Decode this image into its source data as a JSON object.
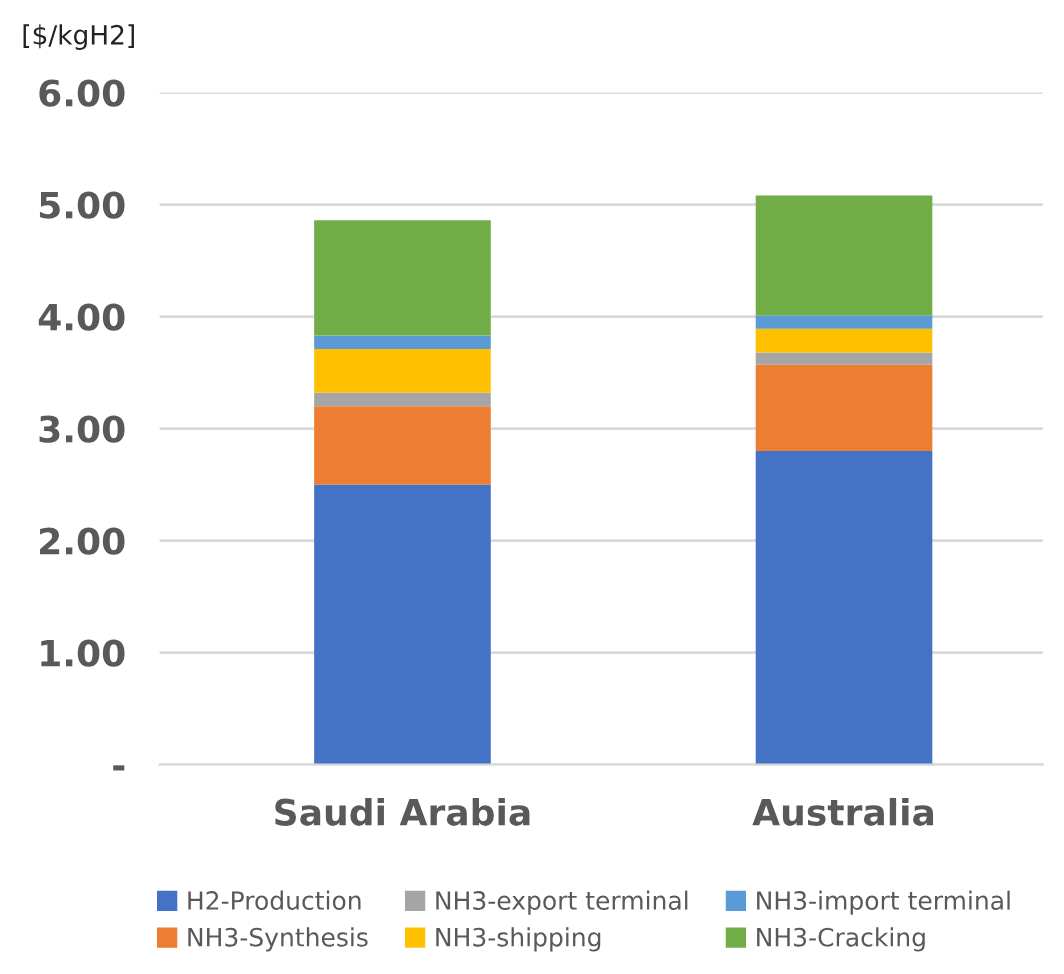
{
  "chart_data": {
    "type": "bar",
    "stacked": true,
    "ylabel": "[$/kgH2]",
    "categories": [
      "Saudi Arabia",
      "Australia"
    ],
    "series": [
      {
        "name": "H2-Production",
        "color": "#4472c4",
        "values": [
          2.5,
          2.8
        ]
      },
      {
        "name": "NH3-Synthesis",
        "color": "#ed7d31",
        "values": [
          0.7,
          0.77
        ]
      },
      {
        "name": "NH3-export terminal",
        "color": "#a5a5a5",
        "values": [
          0.12,
          0.11
        ]
      },
      {
        "name": "NH3-shipping",
        "color": "#ffc000",
        "values": [
          0.39,
          0.21
        ]
      },
      {
        "name": "NH3-import terminal",
        "color": "#5b9bd5",
        "values": [
          0.12,
          0.12
        ]
      },
      {
        "name": "NH3-Cracking",
        "color": "#70ad47",
        "values": [
          1.03,
          1.07
        ]
      }
    ],
    "ylim": [
      0,
      6
    ],
    "yticks": [
      {
        "value": 0,
        "label": "-"
      },
      {
        "value": 1,
        "label": "1.00"
      },
      {
        "value": 2,
        "label": "2.00"
      },
      {
        "value": 3,
        "label": "3.00"
      },
      {
        "value": 4,
        "label": "4.00"
      },
      {
        "value": 5,
        "label": "5.00"
      },
      {
        "value": 6,
        "label": "6.00"
      }
    ],
    "grid": "y",
    "legend": "bottom"
  }
}
